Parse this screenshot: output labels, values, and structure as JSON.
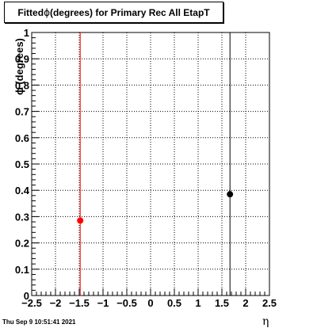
{
  "chart_data": {
    "type": "scatter",
    "title_prefix": "Fitted ",
    "title_symbol": "ϕ",
    "title_suffix": " (degrees) for Primary Rec All EtapT",
    "xlabel": "η",
    "ylabel": "ϕ (degrees)",
    "xlim": [
      -2.5,
      2.5
    ],
    "ylim": [
      0,
      1
    ],
    "xticks": [
      -2.5,
      -2,
      -1.5,
      -1,
      -0.5,
      0,
      0.5,
      1,
      1.5,
      2,
      2.5
    ],
    "xtick_labels": [
      "−2.5",
      "−2",
      "−1.5",
      "−1",
      "−0.5",
      "0",
      "0.5",
      "1",
      "1.5",
      "2",
      "2.5"
    ],
    "yticks": [
      0,
      0.1,
      0.2,
      0.3,
      0.4,
      0.5,
      0.6,
      0.7,
      0.8,
      0.9,
      1
    ],
    "ytick_labels": [
      "0",
      "0.1",
      "0.2",
      "0.3",
      "0.4",
      "0.5",
      "0.6",
      "0.7",
      "0.8",
      "0.9",
      "1"
    ],
    "grid": true,
    "points": [
      {
        "x": -1.48,
        "y": 0.285,
        "color": "#ff0000",
        "vline_color": "#ff0000"
      },
      {
        "x": 1.67,
        "y": 0.385,
        "color": "#000000",
        "vline_color": "#000000"
      }
    ]
  },
  "footer": {
    "timestamp": "Thu Sep  9 10:51:41 2021"
  }
}
